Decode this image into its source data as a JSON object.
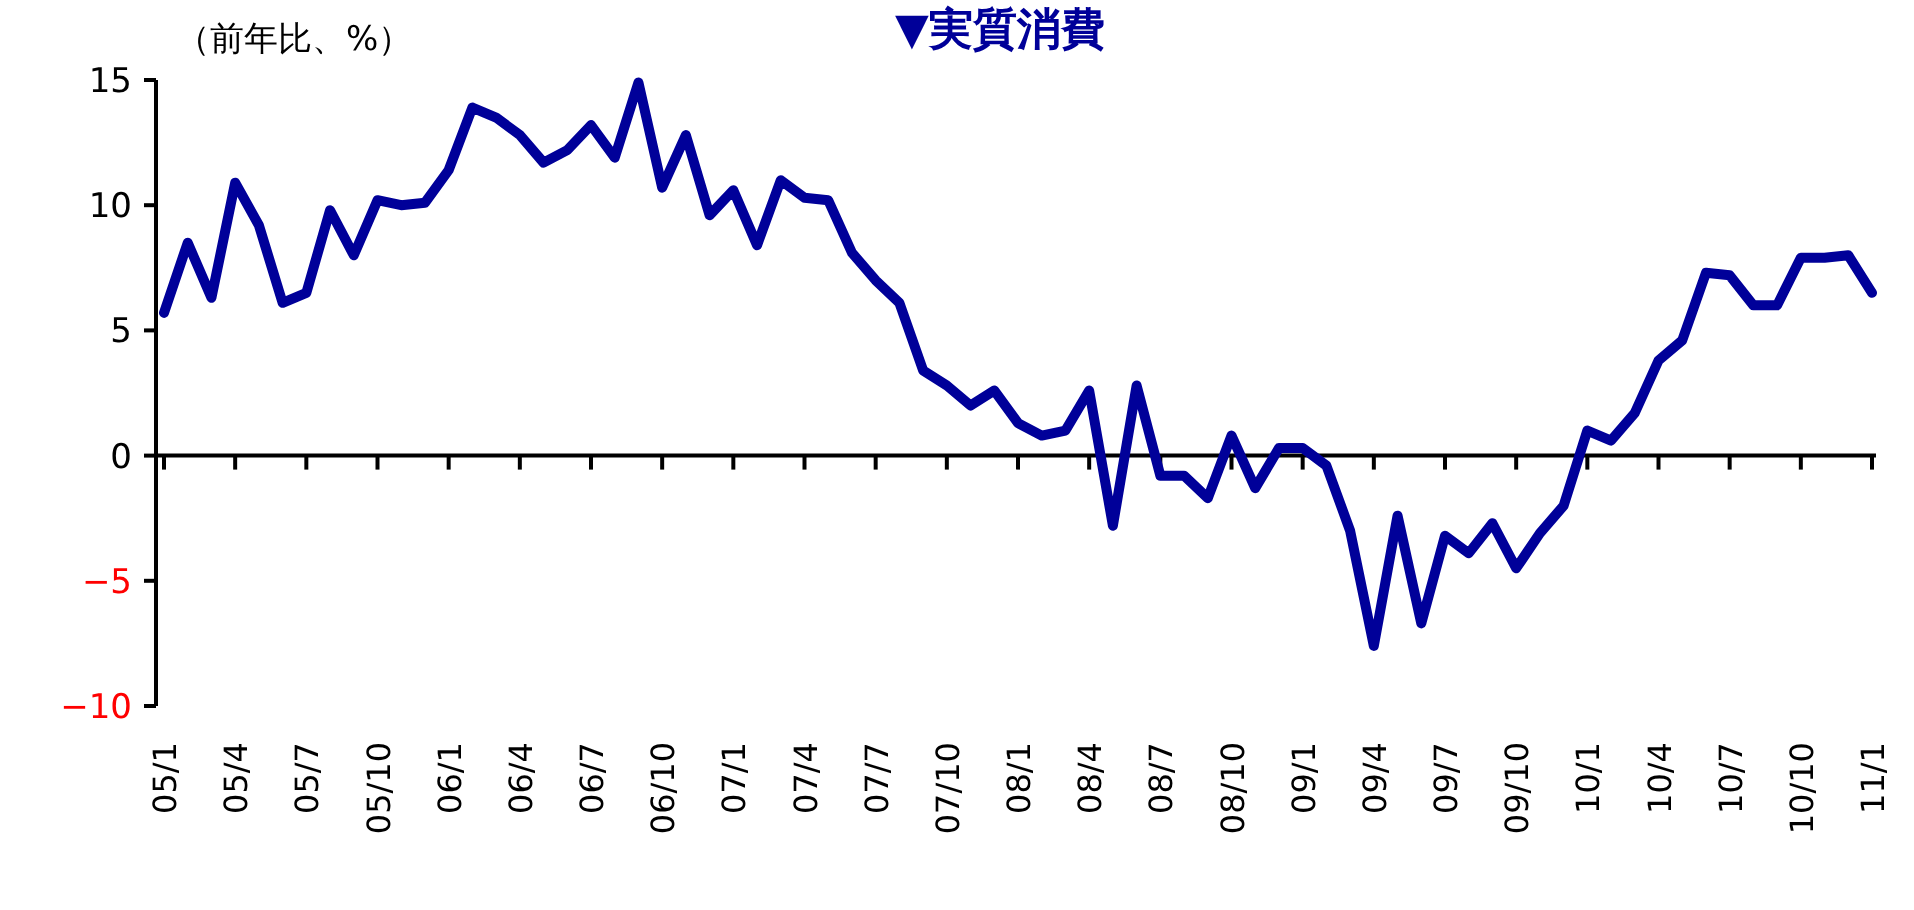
{
  "chart_data": {
    "type": "line",
    "title": "▼実質消費",
    "ylabel": "（前年比、%）",
    "categories": [
      "05/1",
      null,
      null,
      "05/4",
      null,
      null,
      "05/7",
      null,
      null,
      "05/10",
      null,
      null,
      "06/1",
      null,
      null,
      "06/4",
      null,
      null,
      "06/7",
      null,
      null,
      "06/10",
      null,
      null,
      "07/1",
      null,
      null,
      "07/4",
      null,
      null,
      "07/7",
      null,
      null,
      "07/10",
      null,
      null,
      "08/1",
      null,
      null,
      "08/4",
      null,
      null,
      "08/7",
      null,
      null,
      "08/10",
      null,
      null,
      "09/1",
      null,
      null,
      "09/4",
      null,
      null,
      "09/7",
      null,
      null,
      "09/10",
      null,
      null,
      "10/1",
      null,
      null,
      "10/4",
      null,
      null,
      "10/7",
      null,
      null,
      "10/10",
      null,
      null,
      "11/1"
    ],
    "series": [
      {
        "color": "#000099",
        "values": [
          5.7,
          8.5,
          6.3,
          10.9,
          9.2,
          6.1,
          6.5,
          9.8,
          8.0,
          10.2,
          10.0,
          10.1,
          11.4,
          13.9,
          13.5,
          12.8,
          11.7,
          12.2,
          13.2,
          11.9,
          14.9,
          10.7,
          12.8,
          9.6,
          10.6,
          8.4,
          11.0,
          10.3,
          10.2,
          8.1,
          7.0,
          6.1,
          3.4,
          2.8,
          2.0,
          2.6,
          1.3,
          0.8,
          1.0,
          2.6,
          -2.8,
          2.8,
          -0.8,
          -0.8,
          -1.7,
          0.8,
          -1.3,
          0.3,
          0.3,
          -0.4,
          -3.0,
          -7.6,
          -2.4,
          -6.7,
          -3.2,
          -3.9,
          -2.7,
          -4.5,
          -3.1,
          -2.0,
          1.0,
          0.6,
          1.7,
          3.8,
          4.6,
          7.3,
          7.2,
          6.0,
          6.0,
          7.9,
          7.9,
          8.0,
          6.5
        ]
      }
    ],
    "ylim": [
      -10,
      15
    ],
    "yticks": [
      {
        "value": -10,
        "label": "−10"
      },
      {
        "value": -5,
        "label": "−5"
      },
      0,
      5,
      10,
      15
    ],
    "marker": "none",
    "line_style": "solid"
  }
}
